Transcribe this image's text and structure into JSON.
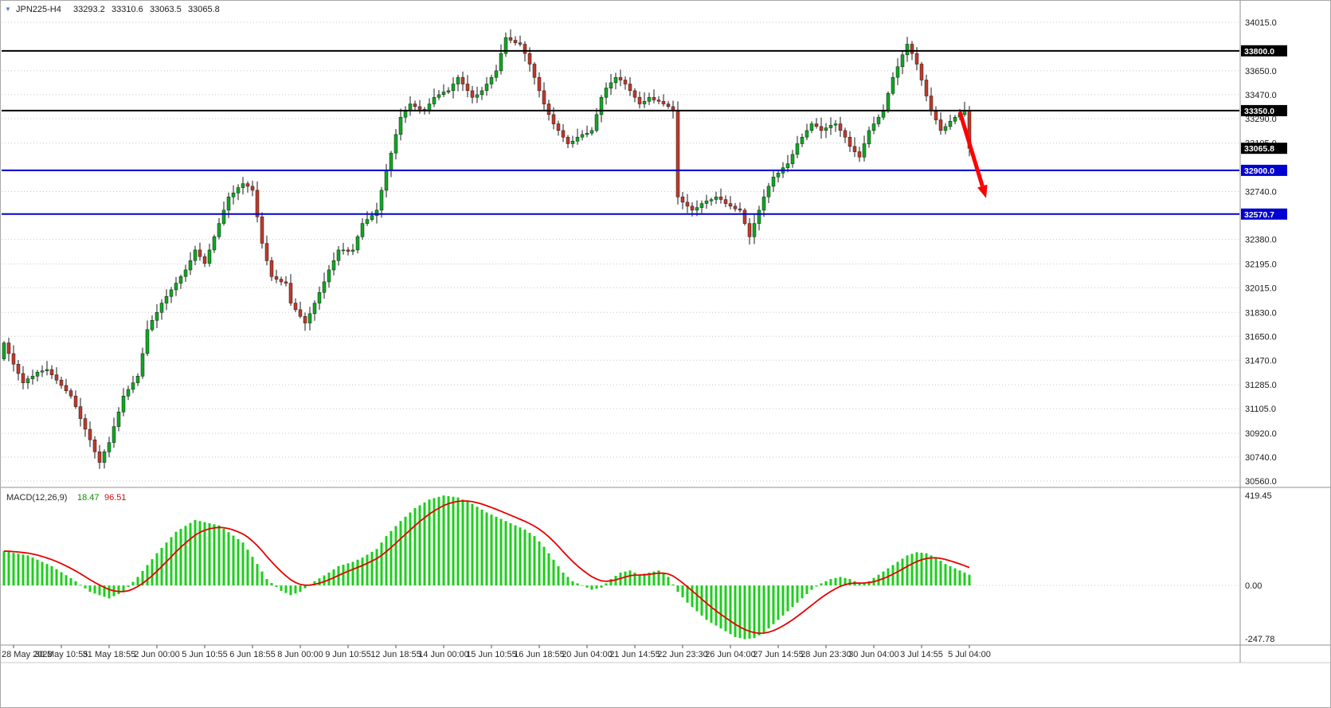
{
  "window": {
    "title": {
      "symbol": "JPN225-H4",
      "open": "33293.2",
      "high": "33310.6",
      "low": "33063.5",
      "close": "33065.8"
    }
  },
  "icons": {
    "dropdown": "▼"
  },
  "macd_label": {
    "name": "MACD(12,26,9)",
    "value1": "18.47",
    "value2": "96.51"
  },
  "colors": {
    "background": "#FFFFFF",
    "grid": "#c6c6c6",
    "bull": "#0FA822",
    "bear": "#C0392B",
    "outline": "#1a1a1a",
    "histogram": "#1ECD1E",
    "signal": "#E80000",
    "arrow": "#FF0000",
    "level_black": "#000000",
    "level_blue": "#0000D0",
    "axis_text": "#1a1a1a"
  },
  "annotation": {
    "arrow": {
      "from": {
        "candle": 200,
        "price": 33340
      },
      "to": {
        "candle": 205.5,
        "price": 32690
      }
    }
  },
  "chart_data": {
    "type": "candlestick",
    "symbol": "JPN225",
    "timeframe": "H4",
    "title": "JPN225-H4 33293.2 33310.6 33063.5 33065.8",
    "main": {
      "ylim": [
        30560,
        34015
      ],
      "first_open": 31480,
      "closes": [
        31600,
        31520,
        31440,
        31370,
        31300,
        31330,
        31350,
        31380,
        31390,
        31400,
        31360,
        31320,
        31280,
        31240,
        31200,
        31120,
        31030,
        30950,
        30870,
        30780,
        30700,
        30780,
        30850,
        30970,
        31080,
        31200,
        31250,
        31300,
        31350,
        31520,
        31700,
        31770,
        31830,
        31900,
        31950,
        32000,
        32050,
        32100,
        32150,
        32220,
        32300,
        32250,
        32200,
        32300,
        32400,
        32500,
        32600,
        32700,
        32730,
        32770,
        32800,
        32780,
        32750,
        32550,
        32350,
        32220,
        32100,
        32080,
        32060,
        32050,
        31900,
        31850,
        31800,
        31750,
        31820,
        31900,
        31980,
        32060,
        32150,
        32220,
        32300,
        32300,
        32290,
        32300,
        32400,
        32500,
        32530,
        32560,
        32600,
        32750,
        32900,
        33030,
        33170,
        33300,
        33350,
        33400,
        33380,
        33360,
        33350,
        33400,
        33450,
        33470,
        33490,
        33500,
        33550,
        33600,
        33550,
        33500,
        33450,
        33470,
        33500,
        33550,
        33600,
        33650,
        33780,
        33900,
        33880,
        33860,
        33850,
        33780,
        33700,
        33600,
        33500,
        33400,
        33320,
        33250,
        33200,
        33150,
        33100,
        33120,
        33150,
        33170,
        33180,
        33200,
        33320,
        33450,
        33520,
        33560,
        33600,
        33580,
        33550,
        33500,
        33450,
        33400,
        33420,
        33450,
        33430,
        33420,
        33400,
        33380,
        33350,
        32700,
        32660,
        32630,
        32600,
        32620,
        32650,
        32670,
        32680,
        32700,
        32680,
        32650,
        32630,
        32610,
        32600,
        32500,
        32400,
        32500,
        32600,
        32700,
        32780,
        32850,
        32880,
        32920,
        32950,
        33020,
        33100,
        33150,
        33200,
        33250,
        33230,
        33200,
        33220,
        33240,
        33250,
        33200,
        33150,
        33080,
        33040,
        33000,
        33100,
        33200,
        33250,
        33300,
        33350,
        33480,
        33600,
        33680,
        33770,
        33850,
        33780,
        33700,
        33580,
        33460,
        33350,
        33280,
        33200,
        33230,
        33270,
        33300,
        33320,
        33350,
        33065.8
      ],
      "levels": [
        {
          "price": 33800,
          "color": "#000000"
        },
        {
          "price": 33350,
          "color": "#000000"
        },
        {
          "price": 32900,
          "color": "#0000D0"
        },
        {
          "price": 32570.7,
          "color": "#0000D0"
        }
      ],
      "price_tags": [
        {
          "text": "33800.0",
          "color": "#000000"
        },
        {
          "text": "33350.0",
          "color": "#000000"
        },
        {
          "text": "33065.8",
          "color": "#000000"
        },
        {
          "text": "32900.0",
          "color": "#0000D0"
        },
        {
          "text": "32570.7",
          "color": "#0000D0"
        }
      ],
      "axis_labels": [
        "34015.0",
        "33650.0",
        "33470.0",
        "33290.0",
        "33105.0",
        "32740.0",
        "32380.0",
        "32195.0",
        "32015.0",
        "31830.0",
        "31650.0",
        "31470.0",
        "31285.0",
        "31105.0",
        "30920.0",
        "30740.0",
        "30560.0"
      ]
    },
    "macd": {
      "label": "MACD(12,26,9)",
      "current_values": [
        "18.47",
        "96.51"
      ],
      "ylim": [
        -247.78,
        419.45
      ],
      "axis_labels": [
        "419.45",
        "0.00",
        "-247.78"
      ],
      "waypoints": [
        [
          0,
          160
        ],
        [
          5,
          140
        ],
        [
          10,
          90
        ],
        [
          15,
          20
        ],
        [
          18,
          -30
        ],
        [
          22,
          -60
        ],
        [
          25,
          -30
        ],
        [
          28,
          40
        ],
        [
          32,
          150
        ],
        [
          36,
          250
        ],
        [
          40,
          305
        ],
        [
          45,
          280
        ],
        [
          50,
          200
        ],
        [
          53,
          100
        ],
        [
          55,
          30
        ],
        [
          58,
          -25
        ],
        [
          60,
          -45
        ],
        [
          62,
          -30
        ],
        [
          65,
          20
        ],
        [
          68,
          60
        ],
        [
          70,
          90
        ],
        [
          73,
          110
        ],
        [
          75,
          130
        ],
        [
          78,
          170
        ],
        [
          80,
          230
        ],
        [
          83,
          300
        ],
        [
          86,
          360
        ],
        [
          89,
          400
        ],
        [
          92,
          419
        ],
        [
          95,
          410
        ],
        [
          98,
          380
        ],
        [
          101,
          340
        ],
        [
          104,
          310
        ],
        [
          107,
          280
        ],
        [
          109,
          260
        ],
        [
          111,
          230
        ],
        [
          113,
          180
        ],
        [
          115,
          120
        ],
        [
          117,
          60
        ],
        [
          119,
          20
        ],
        [
          121,
          0
        ],
        [
          123,
          -20
        ],
        [
          125,
          -10
        ],
        [
          127,
          30
        ],
        [
          129,
          60
        ],
        [
          131,
          70
        ],
        [
          133,
          50
        ],
        [
          135,
          60
        ],
        [
          137,
          70
        ],
        [
          139,
          40
        ],
        [
          141,
          -30
        ],
        [
          143,
          -80
        ],
        [
          145,
          -120
        ],
        [
          147,
          -160
        ],
        [
          150,
          -200
        ],
        [
          153,
          -240
        ],
        [
          155,
          -250
        ],
        [
          157,
          -245
        ],
        [
          159,
          -220
        ],
        [
          161,
          -180
        ],
        [
          163,
          -140
        ],
        [
          165,
          -100
        ],
        [
          167,
          -60
        ],
        [
          169,
          -20
        ],
        [
          171,
          10
        ],
        [
          173,
          30
        ],
        [
          175,
          40
        ],
        [
          177,
          30
        ],
        [
          179,
          10
        ],
        [
          181,
          20
        ],
        [
          183,
          50
        ],
        [
          185,
          80
        ],
        [
          187,
          110
        ],
        [
          189,
          140
        ],
        [
          191,
          155
        ],
        [
          193,
          150
        ],
        [
          195,
          130
        ],
        [
          197,
          100
        ],
        [
          199,
          80
        ],
        [
          201,
          60
        ],
        [
          202,
          50
        ]
      ]
    },
    "time_axis": {
      "first_candle": 2,
      "every": 10,
      "labels": [
        "28 May 2023",
        "30 May 10:55",
        "31 May 18:55",
        "2 Jun 00:00",
        "5 Jun 10:55",
        "6 Jun 18:55",
        "8 Jun 00:00",
        "9 Jun 10:55",
        "12 Jun 18:55",
        "14 Jun 00:00",
        "15 Jun 10:55",
        "16 Jun 18:55",
        "20 Jun 04:00",
        "21 Jun 14:55",
        "22 Jun 23:30",
        "26 Jun 04:00",
        "27 Jun 14:55",
        "28 Jun 23:30",
        "30 Jun 04:00",
        "3 Jul 14:55",
        "5 Jul 04:00"
      ]
    }
  }
}
